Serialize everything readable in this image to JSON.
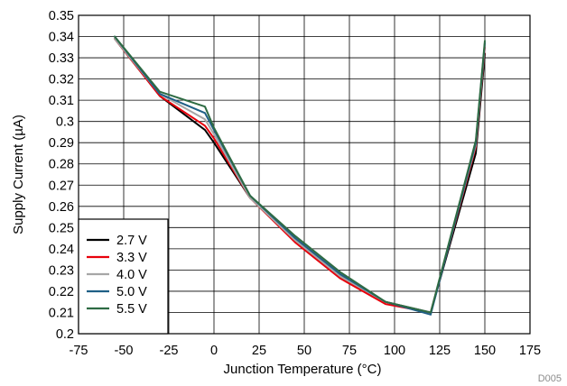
{
  "chart_data": {
    "type": "line",
    "title": "",
    "xlabel": "Junction Temperature  (°C)",
    "ylabel": "Supply Current (µA)",
    "xlim": [
      -75,
      175
    ],
    "ylim": [
      0.2,
      0.35
    ],
    "x_ticks": [
      -75,
      -50,
      -25,
      0,
      25,
      50,
      75,
      100,
      125,
      150,
      175
    ],
    "x_tick_labels": [
      "-75",
      "-50",
      "-25",
      "0",
      "25",
      "50",
      "75",
      "100",
      "125",
      "150",
      "175"
    ],
    "y_ticks": [
      0.2,
      0.21,
      0.22,
      0.23,
      0.24,
      0.25,
      0.26,
      0.27,
      0.28,
      0.29,
      0.3,
      0.31,
      0.32,
      0.33,
      0.34,
      0.35
    ],
    "y_tick_labels": [
      "0.2",
      "0.21",
      "0.22",
      "0.23",
      "0.24",
      "0.25",
      "0.26",
      "0.27",
      "0.28",
      "0.29",
      "0.3",
      "0.31",
      "0.32",
      "0.33",
      "0.34",
      "0.35"
    ],
    "grid": true,
    "legend_position": "bottom-left",
    "x": [
      -55,
      -30,
      -5,
      0,
      20,
      45,
      70,
      95,
      120,
      145,
      150
    ],
    "series": [
      {
        "name": "2.7 V",
        "color": "#000000",
        "values": [
          0.339,
          0.312,
          0.296,
          0.29,
          0.264,
          0.244,
          0.227,
          0.215,
          0.21,
          0.285,
          0.332
        ]
      },
      {
        "name": "3.3 V",
        "color": "#e8000b",
        "values": [
          0.339,
          0.312,
          0.298,
          0.292,
          0.264,
          0.243,
          0.226,
          0.214,
          0.21,
          0.288,
          0.335
        ]
      },
      {
        "name": "4.0 V",
        "color": "#a6a6a6",
        "values": [
          0.339,
          0.313,
          0.301,
          0.294,
          0.264,
          0.244,
          0.227,
          0.215,
          0.21,
          0.289,
          0.336
        ]
      },
      {
        "name": "5.0 V",
        "color": "#1f5f86",
        "values": [
          0.34,
          0.313,
          0.304,
          0.296,
          0.265,
          0.245,
          0.228,
          0.215,
          0.209,
          0.29,
          0.337
        ]
      },
      {
        "name": "5.5 V",
        "color": "#2e6b43",
        "values": [
          0.34,
          0.314,
          0.307,
          0.297,
          0.265,
          0.246,
          0.229,
          0.215,
          0.21,
          0.291,
          0.338
        ]
      }
    ]
  },
  "figure_code": "D005"
}
